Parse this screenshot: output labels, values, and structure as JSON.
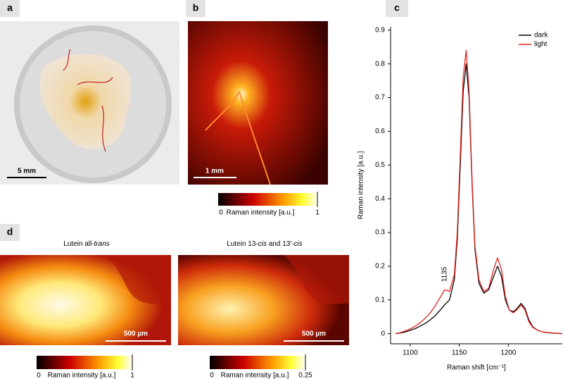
{
  "panels": {
    "a": {
      "label": "a",
      "scale_bar": "5 mm"
    },
    "b": {
      "label": "b",
      "scale_bar": "1 mm",
      "colorbar": {
        "label": "Raman intensity [a.u.]",
        "min": "0",
        "max": "1"
      }
    },
    "d": {
      "label": "d",
      "maps": [
        {
          "title": [
            {
              "text": "Lutein all-"
            },
            {
              "text": "trans",
              "italic": true
            }
          ],
          "scale_bar": "500 µm",
          "colorbar": {
            "label": "Raman intensity [a.u.]",
            "min": "0",
            "max": "1"
          }
        },
        {
          "title": [
            {
              "text": "Lutein 13-"
            },
            {
              "text": "cis",
              "italic": true
            },
            {
              "text": " and 13′-"
            },
            {
              "text": "cis",
              "italic": true
            }
          ],
          "scale_bar": "500 µm",
          "colorbar": {
            "label": "Raman intensity [a.u.]",
            "min": "0",
            "max": "0.25"
          }
        }
      ]
    }
  },
  "chart_data": {
    "type": "line",
    "panel_label": "c",
    "x_label": "Raman shift [cm⁻¹]",
    "y_label": "Raman intensity [a.u.]",
    "annotation": {
      "text": "1135",
      "x": 1135
    },
    "x": [
      1085,
      1090,
      1095,
      1100,
      1105,
      1110,
      1115,
      1120,
      1125,
      1130,
      1135,
      1140,
      1145,
      1148,
      1151,
      1154,
      1157,
      1160,
      1163,
      1166,
      1170,
      1175,
      1180,
      1185,
      1189,
      1193,
      1197,
      1201,
      1205,
      1209,
      1213,
      1217,
      1221,
      1225,
      1230,
      1235,
      1240,
      1245,
      1250,
      1255
    ],
    "series": [
      {
        "name": "dark",
        "color": "#000000",
        "values": [
          0,
          0.002,
          0.005,
          0.01,
          0.015,
          0.022,
          0.03,
          0.04,
          0.052,
          0.068,
          0.085,
          0.1,
          0.16,
          0.28,
          0.5,
          0.72,
          0.8,
          0.7,
          0.45,
          0.25,
          0.15,
          0.12,
          0.13,
          0.17,
          0.2,
          0.17,
          0.1,
          0.07,
          0.065,
          0.075,
          0.09,
          0.075,
          0.04,
          0.02,
          0.01,
          0.005,
          0.003,
          0.002,
          0.001,
          0
        ]
      },
      {
        "name": "light",
        "color": "#e0201b",
        "values": [
          0,
          0.003,
          0.008,
          0.014,
          0.022,
          0.032,
          0.045,
          0.06,
          0.08,
          0.105,
          0.13,
          0.125,
          0.175,
          0.3,
          0.53,
          0.76,
          0.84,
          0.72,
          0.46,
          0.26,
          0.16,
          0.125,
          0.135,
          0.19,
          0.225,
          0.19,
          0.11,
          0.07,
          0.062,
          0.072,
          0.085,
          0.07,
          0.035,
          0.018,
          0.01,
          0.005,
          0.003,
          0.002,
          0.001,
          0
        ]
      }
    ],
    "xlim": [
      1080,
      1255
    ],
    "ylim": [
      -0.03,
      0.91
    ],
    "xticks": [
      1100,
      1150,
      1200
    ],
    "yticks": [
      0,
      0.1,
      0.2,
      0.3,
      0.4,
      0.5,
      0.6,
      0.7,
      0.8,
      0.9
    ],
    "legend": "upper right"
  }
}
